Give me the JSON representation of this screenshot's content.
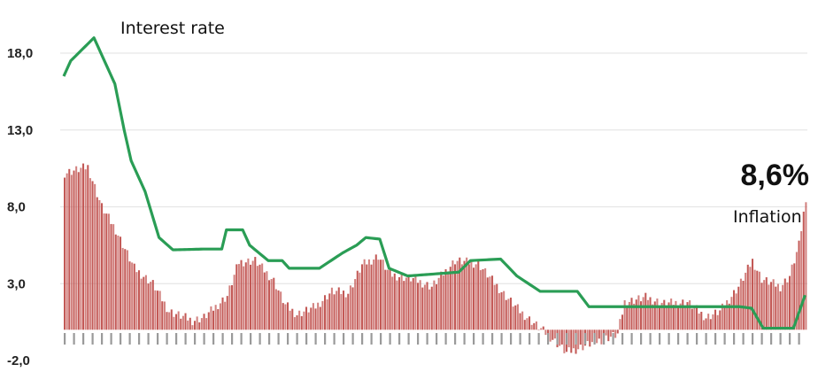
{
  "chart_data": {
    "type": "bar",
    "title": "",
    "xlabel": "",
    "ylabel": "",
    "ylim": [
      -2,
      19
    ],
    "grid": true,
    "y_ticks": [
      "18,0",
      "13,0",
      "8,0",
      "3,0",
      "-2,0"
    ],
    "annotations": {
      "latest_inflation": "8,6%",
      "interest_rate_label": "Interest rate",
      "inflation_label": "Inflation"
    },
    "x_tick_labels_illegible": true,
    "colors": {
      "bars": "#c0504d",
      "line": "#2a9d55",
      "grid": "#e6e6e6"
    },
    "inflation_keypoints": [
      [
        0,
        10.2
      ],
      [
        10,
        10.6
      ],
      [
        16,
        8.0
      ],
      [
        22,
        6.5
      ],
      [
        30,
        4.0
      ],
      [
        38,
        3.0
      ],
      [
        45,
        1.2
      ],
      [
        55,
        0.6
      ],
      [
        60,
        0.8
      ],
      [
        70,
        2.2
      ],
      [
        75,
        4.4
      ],
      [
        82,
        4.5
      ],
      [
        90,
        3.2
      ],
      [
        95,
        1.6
      ],
      [
        100,
        1.0
      ],
      [
        108,
        1.5
      ],
      [
        115,
        2.5
      ],
      [
        122,
        2.4
      ],
      [
        128,
        4.2
      ],
      [
        135,
        4.8
      ],
      [
        140,
        3.6
      ],
      [
        150,
        3.3
      ],
      [
        158,
        2.8
      ],
      [
        168,
        4.5
      ],
      [
        178,
        4.3
      ],
      [
        188,
        2.5
      ],
      [
        196,
        1.2
      ],
      [
        203,
        0.3
      ],
      [
        210,
        -0.6
      ],
      [
        216,
        -1.5
      ],
      [
        228,
        -0.8
      ],
      [
        238,
        -0.3
      ],
      [
        241,
        1.8
      ],
      [
        250,
        2.1
      ],
      [
        258,
        1.7
      ],
      [
        268,
        1.8
      ],
      [
        276,
        0.8
      ],
      [
        282,
        1.2
      ],
      [
        290,
        2.8
      ],
      [
        296,
        4.5
      ],
      [
        300,
        3.3
      ],
      [
        308,
        2.8
      ],
      [
        312,
        3.5
      ],
      [
        316,
        5.5
      ],
      [
        319,
        8.6
      ]
    ],
    "interest_rate_steps": [
      [
        0,
        16.5
      ],
      [
        3,
        17.5
      ],
      [
        13,
        19.0
      ],
      [
        22,
        16.0
      ],
      [
        26,
        13.0
      ],
      [
        29,
        11.0
      ],
      [
        32,
        10.0
      ],
      [
        35,
        9.0
      ],
      [
        38,
        7.5
      ],
      [
        41,
        6.0
      ],
      [
        47,
        5.2
      ],
      [
        60,
        5.25
      ],
      [
        68,
        5.25
      ],
      [
        70,
        6.5
      ],
      [
        77,
        6.5
      ],
      [
        80,
        5.5
      ],
      [
        88,
        4.5
      ],
      [
        94,
        4.5
      ],
      [
        97,
        4.0
      ],
      [
        110,
        4.0
      ],
      [
        115,
        4.5
      ],
      [
        120,
        5.0
      ],
      [
        126,
        5.5
      ],
      [
        130,
        6.0
      ],
      [
        136,
        5.9
      ],
      [
        140,
        4.0
      ],
      [
        148,
        3.5
      ],
      [
        170,
        3.75
      ],
      [
        175,
        4.5
      ],
      [
        188,
        4.6
      ],
      [
        195,
        3.5
      ],
      [
        205,
        2.5
      ],
      [
        221,
        2.5
      ],
      [
        226,
        1.5
      ],
      [
        291,
        1.5
      ],
      [
        296,
        1.4
      ],
      [
        301,
        0.1
      ],
      [
        314,
        0.1
      ],
      [
        319,
        2.25
      ]
    ]
  }
}
